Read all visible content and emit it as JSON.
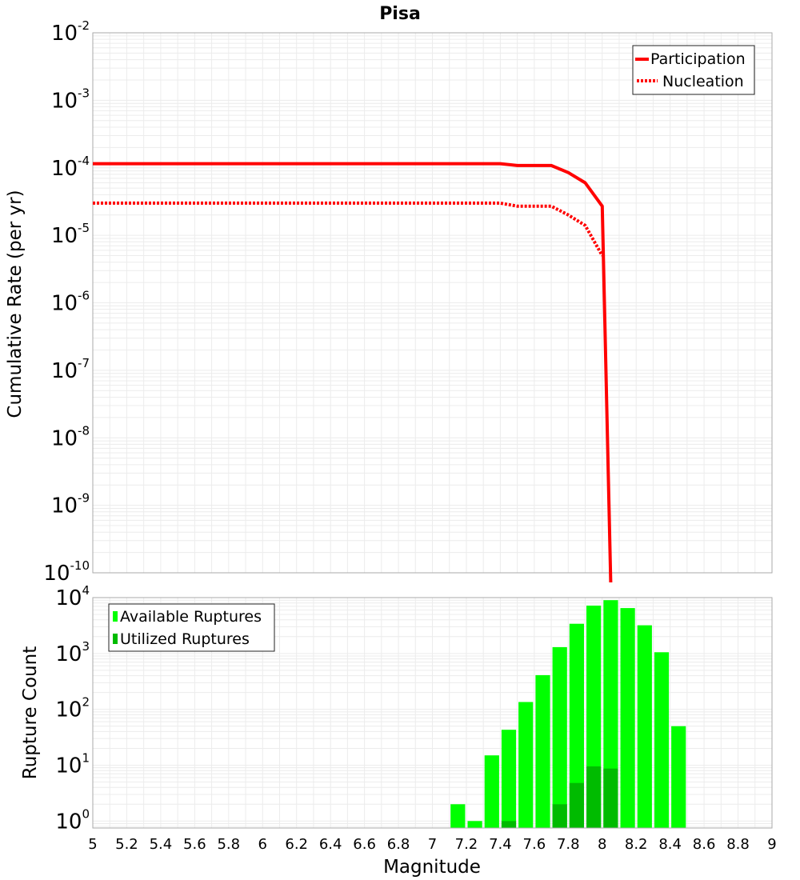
{
  "chart_data": [
    {
      "type": "line",
      "title": "Pisa",
      "xlabel": "Magnitude",
      "ylabel": "Cumulative Rate (per yr)",
      "yscale": "log",
      "xlim": [
        5,
        9
      ],
      "ylim": [
        1e-10,
        0.01
      ],
      "ytick_bases": [
        "10",
        "10",
        "10",
        "10",
        "10",
        "10",
        "10",
        "10",
        "10"
      ],
      "ytick_exponents": [
        "-2",
        "-3",
        "-4",
        "-5",
        "-6",
        "-7",
        "-8",
        "-9",
        "-10"
      ],
      "legend_position": "top-right",
      "series": [
        {
          "name": "Participation",
          "style": "solid",
          "color": "#ff0000",
          "points": [
            [
              5.0,
              0.000115
            ],
            [
              7.4,
              0.000115
            ],
            [
              7.5,
              0.000108
            ],
            [
              7.7,
              0.000108
            ],
            [
              7.8,
              8.5e-05
            ],
            [
              7.9,
              6e-05
            ],
            [
              8.0,
              2.7e-05
            ],
            [
              8.05,
              1e-10
            ]
          ]
        },
        {
          "name": "Nucleation",
          "style": "dotted",
          "color": "#ff0000",
          "points": [
            [
              5.0,
              3e-05
            ],
            [
              7.4,
              3e-05
            ],
            [
              7.5,
              2.7e-05
            ],
            [
              7.7,
              2.7e-05
            ],
            [
              7.8,
              2e-05
            ],
            [
              7.9,
              1.4e-05
            ],
            [
              8.0,
              5e-06
            ]
          ]
        }
      ]
    },
    {
      "type": "bar",
      "xlabel": "Magnitude",
      "ylabel": "Rupture Count",
      "yscale": "log",
      "xlim": [
        5,
        9
      ],
      "ylim": [
        0.75,
        10000
      ],
      "xticks": [
        "5",
        "5.2",
        "5.4",
        "5.6",
        "5.8",
        "6",
        "6.2",
        "6.4",
        "6.6",
        "6.8",
        "7",
        "7.2",
        "7.4",
        "7.6",
        "7.8",
        "8",
        "8.2",
        "8.4",
        "8.6",
        "8.8",
        "9"
      ],
      "ytick_bases": [
        "10",
        "10",
        "10",
        "10",
        "10"
      ],
      "ytick_exponents": [
        "4",
        "3",
        "2",
        "1",
        "0"
      ],
      "legend_position": "top-left",
      "bin_width": 0.1,
      "series": [
        {
          "name": "Available Ruptures",
          "color": "#00ff00",
          "x": [
            7.15,
            7.25,
            7.35,
            7.45,
            7.55,
            7.65,
            7.75,
            7.85,
            7.95,
            8.05,
            8.15,
            8.25,
            8.35,
            8.45
          ],
          "values": [
            2,
            1,
            15,
            43,
            135,
            410,
            1300,
            3400,
            7200,
            9000,
            6500,
            3200,
            1050,
            50
          ]
        },
        {
          "name": "Utilized Ruptures",
          "color": "#00bb00",
          "x": [
            7.45,
            7.75,
            7.85,
            7.95,
            8.05
          ],
          "values": [
            1,
            2,
            4.8,
            9.5,
            8.7
          ]
        }
      ]
    }
  ]
}
